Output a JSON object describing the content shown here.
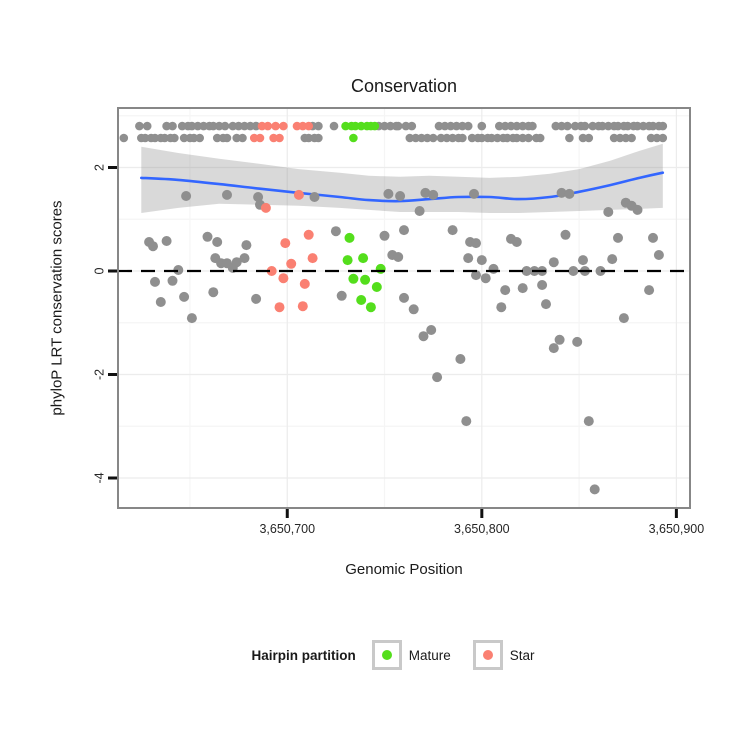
{
  "title": "Conservation",
  "axes": {
    "x": {
      "label": "Genomic Position",
      "domain": [
        3650613,
        3650907
      ],
      "ticks": [
        {
          "value": 3650700,
          "label": "3,650,700"
        },
        {
          "value": 3650800,
          "label": "3,650,800"
        },
        {
          "value": 3650900,
          "label": "3,650,900"
        }
      ],
      "minor": [
        3650650,
        3650750,
        3650850
      ]
    },
    "y": {
      "label": "phyloP LRT conservation scores",
      "domain": [
        -4.58,
        3.15
      ],
      "ticks": [
        {
          "value": 2,
          "label": "2"
        },
        {
          "value": 0,
          "label": "0"
        },
        {
          "value": -2,
          "label": "-2"
        },
        {
          "value": -4,
          "label": "-4"
        }
      ],
      "minor": [
        3,
        1,
        -1,
        -3
      ]
    }
  },
  "legend": {
    "title": "Hairpin partition",
    "items": [
      {
        "label": "Mature",
        "color": "#54DE1C"
      },
      {
        "label": "Star",
        "color": "#FA8072"
      }
    ]
  },
  "colors": {
    "other_points": "#8F8F8F",
    "mature": "#54DE1C",
    "star": "#FA8072",
    "smooth_line": "#3366FF",
    "ribbon": "rgba(140,140,140,0.33)",
    "zero_line": "#000000",
    "panel_border": "#878787",
    "grid_major": "#ececec",
    "grid_minor": "#f5f5f5",
    "tick": "#111111"
  },
  "chart_data": {
    "type": "scatter",
    "title": "Conservation",
    "xlabel": "Genomic Position",
    "ylabel": "phyloP LRT conservation scores",
    "xlim": [
      3650613,
      3650907
    ],
    "ylim": [
      -4.58,
      3.15
    ],
    "grid": true,
    "legend_position": "bottom",
    "zero_line_y": 0,
    "strip_rows": [
      {
        "score": 2.8,
        "gray": [
          3650624,
          3650628,
          3650638,
          3650641,
          3650646,
          3650649,
          3650651,
          3650654,
          3650657,
          3650660,
          3650662,
          3650665,
          3650668,
          3650672,
          3650675,
          3650678,
          3650681,
          3650684,
          3650713,
          3650716,
          3650724,
          3650747,
          3650750,
          3650753,
          3650756,
          3650757,
          3650761,
          3650764,
          3650778,
          3650781,
          3650784,
          3650787,
          3650790,
          3650793,
          3650800,
          3650809,
          3650812,
          3650815,
          3650818,
          3650821,
          3650824,
          3650826,
          3650838,
          3650841,
          3650844,
          3650848,
          3650851,
          3650853,
          3650857,
          3650860,
          3650862,
          3650865,
          3650868,
          3650870,
          3650873,
          3650875,
          3650878,
          3650880,
          3650883,
          3650886,
          3650888,
          3650891,
          3650893
        ],
        "star": [
          3650687,
          3650690,
          3650694,
          3650698,
          3650705,
          3650708,
          3650711
        ],
        "mature": [
          3650730,
          3650733,
          3650735,
          3650738,
          3650741,
          3650743,
          3650745
        ]
      },
      {
        "score": 2.57,
        "gray": [
          3650616,
          3650625,
          3650627,
          3650630,
          3650632,
          3650635,
          3650637,
          3650640,
          3650642,
          3650647,
          3650650,
          3650652,
          3650655,
          3650664,
          3650667,
          3650669,
          3650674,
          3650677,
          3650709,
          3650711,
          3650714,
          3650716,
          3650763,
          3650766,
          3650769,
          3650772,
          3650775,
          3650779,
          3650782,
          3650785,
          3650788,
          3650790,
          3650795,
          3650798,
          3650800,
          3650803,
          3650805,
          3650808,
          3650811,
          3650813,
          3650816,
          3650818,
          3650821,
          3650824,
          3650828,
          3650830,
          3650845,
          3650852,
          3650855,
          3650868,
          3650871,
          3650874,
          3650877,
          3650887,
          3650890,
          3650893
        ],
        "star": [
          3650683,
          3650686,
          3650693,
          3650696
        ],
        "mature": [
          3650734
        ]
      }
    ],
    "series": [
      {
        "name": "Other",
        "color_key": "other_points",
        "points": [
          [
            3650629,
            0.56
          ],
          [
            3650631,
            0.48
          ],
          [
            3650638,
            0.58
          ],
          [
            3650659,
            0.66
          ],
          [
            3650664,
            0.56
          ],
          [
            3650663,
            0.25
          ],
          [
            3650666,
            0.15
          ],
          [
            3650669,
            0.15
          ],
          [
            3650672,
            0.06
          ],
          [
            3650674,
            0.17
          ],
          [
            3650678,
            0.25
          ],
          [
            3650679,
            0.5
          ],
          [
            3650644,
            0.02
          ],
          [
            3650632,
            -0.21
          ],
          [
            3650641,
            -0.19
          ],
          [
            3650635,
            -0.6
          ],
          [
            3650647,
            -0.5
          ],
          [
            3650662,
            -0.41
          ],
          [
            3650651,
            -0.91
          ],
          [
            3650684,
            -0.54
          ],
          [
            3650648,
            1.45
          ],
          [
            3650669,
            1.47
          ],
          [
            3650685,
            1.43
          ],
          [
            3650686,
            1.28
          ],
          [
            3650714,
            1.43
          ],
          [
            3650752,
            1.49
          ],
          [
            3650758,
            1.45
          ],
          [
            3650771,
            1.51
          ],
          [
            3650775,
            1.47
          ],
          [
            3650768,
            1.16
          ],
          [
            3650796,
            1.49
          ],
          [
            3650841,
            1.51
          ],
          [
            3650845,
            1.49
          ],
          [
            3650865,
            1.14
          ],
          [
            3650874,
            1.32
          ],
          [
            3650877,
            1.26
          ],
          [
            3650880,
            1.18
          ],
          [
            3650725,
            0.77
          ],
          [
            3650750,
            0.68
          ],
          [
            3650754,
            0.31
          ],
          [
            3650757,
            0.27
          ],
          [
            3650760,
            0.79
          ],
          [
            3650760,
            -0.52
          ],
          [
            3650728,
            -0.48
          ],
          [
            3650785,
            0.79
          ],
          [
            3650794,
            0.56
          ],
          [
            3650797,
            0.54
          ],
          [
            3650793,
            0.25
          ],
          [
            3650800,
            0.21
          ],
          [
            3650797,
            -0.08
          ],
          [
            3650802,
            -0.14
          ],
          [
            3650806,
            0.04
          ],
          [
            3650815,
            0.62
          ],
          [
            3650818,
            0.56
          ],
          [
            3650812,
            -0.37
          ],
          [
            3650821,
            -0.33
          ],
          [
            3650810,
            -0.7
          ],
          [
            3650823,
            0.0
          ],
          [
            3650827,
            0.0
          ],
          [
            3650831,
            0.0
          ],
          [
            3650831,
            -0.27
          ],
          [
            3650833,
            -0.64
          ],
          [
            3650837,
            0.17
          ],
          [
            3650843,
            0.7
          ],
          [
            3650847,
            0.0
          ],
          [
            3650852,
            0.21
          ],
          [
            3650853,
            0.0
          ],
          [
            3650861,
            0.0
          ],
          [
            3650867,
            0.23
          ],
          [
            3650870,
            0.64
          ],
          [
            3650873,
            -0.91
          ],
          [
            3650886,
            -0.37
          ],
          [
            3650888,
            0.64
          ],
          [
            3650891,
            0.31
          ],
          [
            3650765,
            -0.74
          ],
          [
            3650770,
            -1.26
          ],
          [
            3650774,
            -1.14
          ],
          [
            3650789,
            -1.7
          ],
          [
            3650777,
            -2.05
          ],
          [
            3650792,
            -2.9
          ],
          [
            3650855,
            -2.9
          ],
          [
            3650840,
            -1.33
          ],
          [
            3650837,
            -1.49
          ],
          [
            3650849,
            -1.37
          ],
          [
            3650858,
            -4.22
          ]
        ]
      },
      {
        "name": "Star",
        "color_key": "star",
        "points": [
          [
            3650699,
            0.54
          ],
          [
            3650711,
            0.7
          ],
          [
            3650713,
            0.25
          ],
          [
            3650702,
            0.14
          ],
          [
            3650692,
            0.0
          ],
          [
            3650698,
            -0.14
          ],
          [
            3650709,
            -0.25
          ],
          [
            3650696,
            -0.7
          ],
          [
            3650708,
            -0.68
          ],
          [
            3650706,
            1.47
          ],
          [
            3650689,
            1.22
          ]
        ]
      },
      {
        "name": "Mature",
        "color_key": "mature",
        "points": [
          [
            3650732,
            0.64
          ],
          [
            3650731,
            0.21
          ],
          [
            3650739,
            0.25
          ],
          [
            3650748,
            0.04
          ],
          [
            3650734,
            -0.15
          ],
          [
            3650740,
            -0.17
          ],
          [
            3650746,
            -0.31
          ],
          [
            3650738,
            -0.56
          ],
          [
            3650743,
            -0.7
          ]
        ]
      }
    ],
    "smooth": {
      "x": [
        3650625,
        3650644,
        3650665,
        3650686,
        3650706,
        3650727,
        3650742,
        3650758,
        3650773,
        3650788,
        3650804,
        3650819,
        3650835,
        3650850,
        3650866,
        3650881,
        3650893
      ],
      "y": [
        1.8,
        1.76,
        1.68,
        1.59,
        1.51,
        1.43,
        1.37,
        1.35,
        1.39,
        1.43,
        1.43,
        1.39,
        1.43,
        1.53,
        1.66,
        1.8,
        1.9
      ],
      "upper": [
        2.4,
        2.28,
        2.17,
        2.07,
        1.97,
        1.9,
        1.84,
        1.82,
        1.84,
        1.82,
        1.8,
        1.82,
        1.88,
        1.97,
        2.13,
        2.32,
        2.46
      ],
      "lower": [
        1.12,
        1.22,
        1.3,
        1.28,
        1.26,
        1.22,
        1.18,
        1.14,
        1.14,
        1.14,
        1.12,
        1.12,
        1.14,
        1.16,
        1.18,
        1.2,
        1.22
      ]
    }
  }
}
